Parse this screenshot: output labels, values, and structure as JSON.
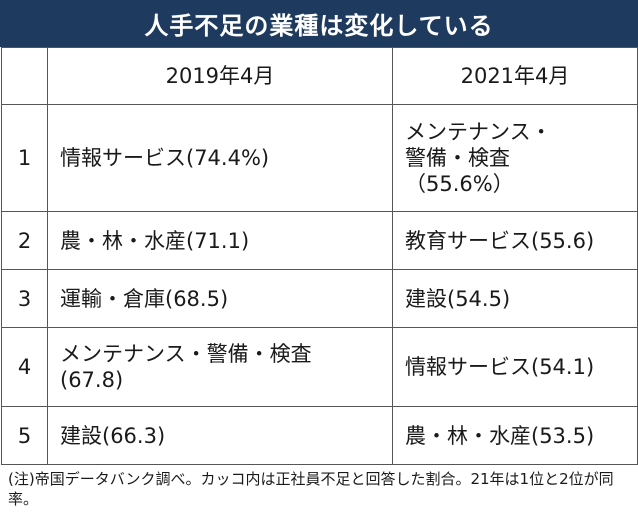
{
  "title": "人手不足の業種は変化している",
  "columns": [
    "",
    "2019年4月",
    "2021年4月"
  ],
  "rows": [
    {
      "rank": "1",
      "y2019": "情報サービス(74.4%)",
      "y2021": "メンテナンス・\n警備・検査\n（55.6%）"
    },
    {
      "rank": "2",
      "y2019": "農・林・水産(71.1)",
      "y2021": "教育サービス(55.6)"
    },
    {
      "rank": "3",
      "y2019": "運輸・倉庫(68.5)",
      "y2021": "建設(54.5)"
    },
    {
      "rank": "4",
      "y2019": "メンテナンス・警備・検査\n(67.8)",
      "y2021": "情報サービス(54.1)"
    },
    {
      "rank": "5",
      "y2019": "建設(66.3)",
      "y2021": "農・林・水産(53.5)"
    }
  ],
  "note": {
    "label": "(注)",
    "text": "帝国データバンク調べ。カッコ内は正社員不足と回答した割合。21年は1位と2位が同率。"
  }
}
